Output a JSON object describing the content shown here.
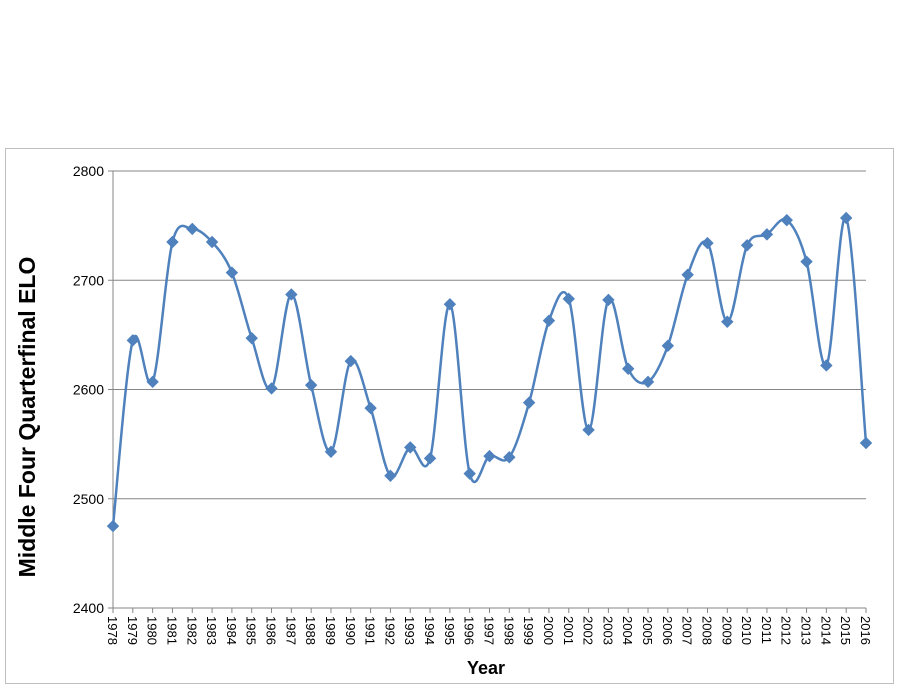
{
  "chart_data": {
    "type": "line",
    "title": "",
    "xlabel": "Year",
    "ylabel": "Middle Four Quarterfinal  ELO",
    "ylim": [
      2400,
      2800
    ],
    "yticks": [
      2400,
      2500,
      2600,
      2700,
      2800
    ],
    "grid": "horizontal",
    "smooth": true,
    "marker": "diamond",
    "colors": {
      "series": "#4f81bd",
      "grid": "#868686",
      "axis": "#868686"
    },
    "x": [
      "1978",
      "1979",
      "1980",
      "1981",
      "1982",
      "1983",
      "1984",
      "1985",
      "1986",
      "1987",
      "1988",
      "1989",
      "1990",
      "1991",
      "1992",
      "1993",
      "1994",
      "1995",
      "1996",
      "1997",
      "1998",
      "1999",
      "2000",
      "2001",
      "2002",
      "2003",
      "2004",
      "2005",
      "2006",
      "2007",
      "2008",
      "2009",
      "2010",
      "2011",
      "2012",
      "2013",
      "2014",
      "2015",
      "2016"
    ],
    "series": [
      {
        "values": [
          2475,
          2645,
          2607,
          2735,
          2747,
          2735,
          2707,
          2647,
          2601,
          2687,
          2604,
          2543,
          2626,
          2583,
          2521,
          2547,
          2537,
          2678,
          2523,
          2539,
          2538,
          2588,
          2663,
          2683,
          2563,
          2682,
          2619,
          2607,
          2640,
          2705,
          2734,
          2662,
          2732,
          2742,
          2755,
          2717,
          2622,
          2757,
          2551
        ]
      }
    ]
  }
}
